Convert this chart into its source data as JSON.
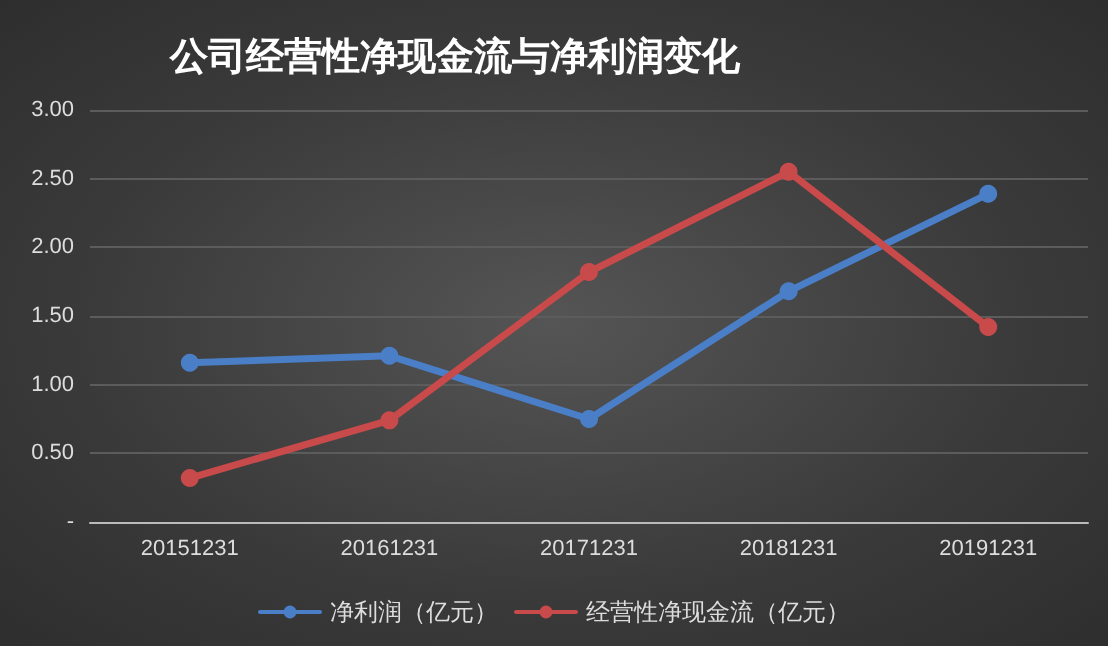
{
  "chart_data": {
    "type": "line",
    "title": "公司经营性净现金流与净利润变化",
    "categories": [
      "20151231",
      "20161231",
      "20171231",
      "20181231",
      "20191231"
    ],
    "series": [
      {
        "name": "净利润（亿元）",
        "color": "#4a7fc8",
        "values": [
          1.16,
          1.21,
          0.75,
          1.68,
          2.39
        ]
      },
      {
        "name": "经营性净现金流（亿元）",
        "color": "#c84a4a",
        "values": [
          0.32,
          0.74,
          1.82,
          2.55,
          1.42
        ]
      }
    ],
    "ylim": [
      0,
      3
    ],
    "yticks": [
      {
        "value": 0,
        "label": "-"
      },
      {
        "value": 0.5,
        "label": "0.50"
      },
      {
        "value": 1,
        "label": "1.00"
      },
      {
        "value": 1.5,
        "label": "1.50"
      },
      {
        "value": 2,
        "label": "2.00"
      },
      {
        "value": 2.5,
        "label": "2.50"
      },
      {
        "value": 3,
        "label": "3.00"
      }
    ],
    "grid": "y",
    "legend": "bottom",
    "marker": "circle",
    "line_style": "solid"
  }
}
